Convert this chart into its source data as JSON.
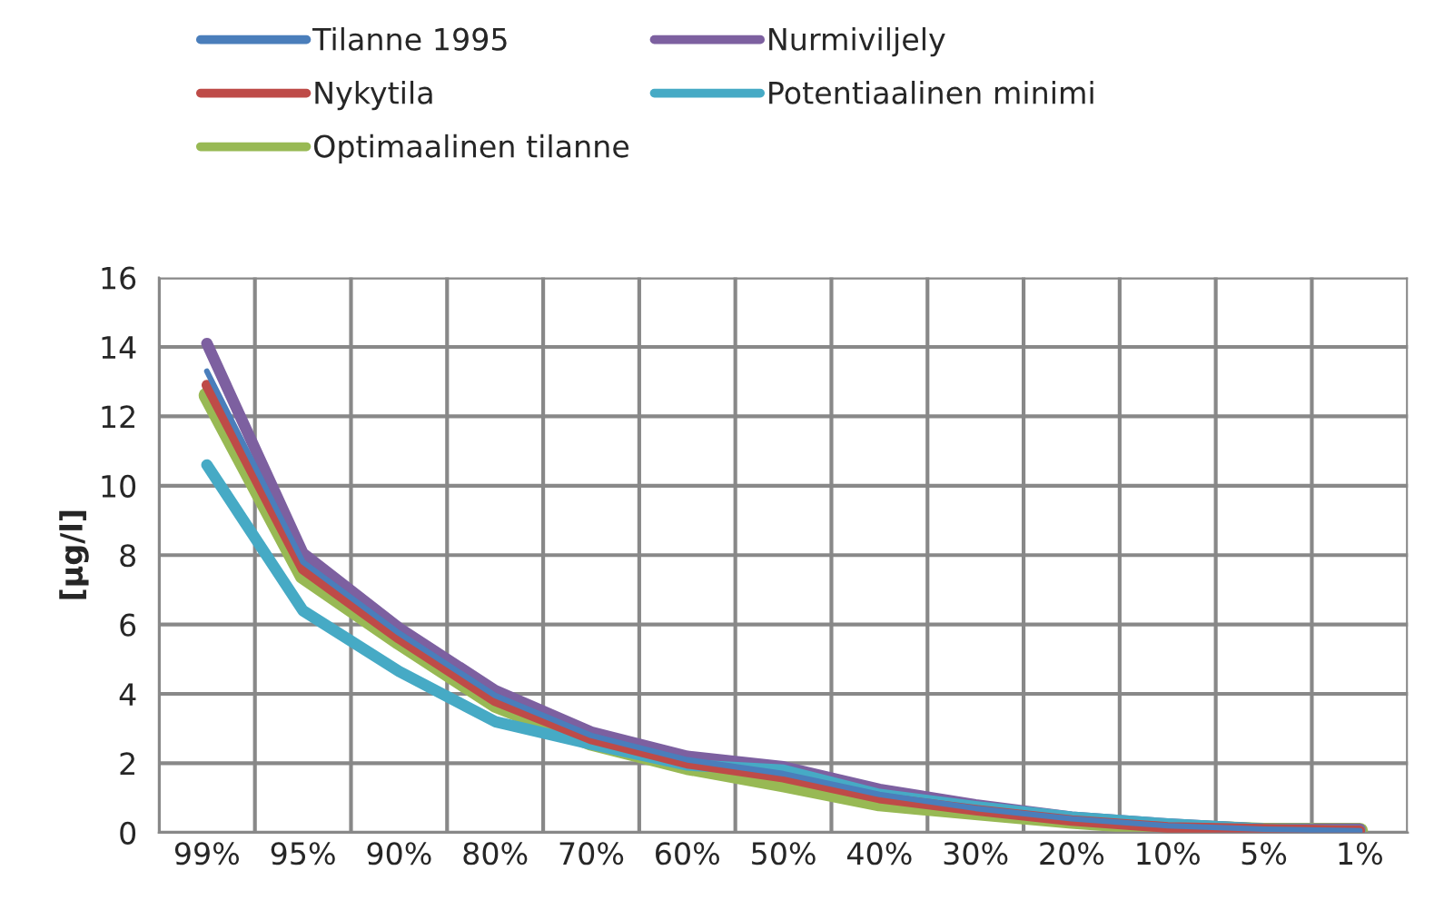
{
  "chart_data": {
    "type": "line",
    "ylabel": "[µg/l]",
    "categories": [
      "99%",
      "95%",
      "90%",
      "80%",
      "70%",
      "60%",
      "50%",
      "40%",
      "30%",
      "20%",
      "10%",
      "5%",
      "1%"
    ],
    "series": [
      {
        "name": "Tilanne 1995",
        "color": "#4a7ebb",
        "values": [
          13.3,
          7.8,
          5.75,
          3.95,
          2.8,
          2.1,
          1.7,
          1.1,
          0.7,
          0.4,
          0.2,
          0.1,
          0.05
        ]
      },
      {
        "name": "Nykytila",
        "color": "#be4b48",
        "values": [
          12.9,
          7.6,
          5.6,
          3.8,
          2.7,
          2.0,
          1.6,
          1.0,
          0.65,
          0.35,
          0.15,
          0.1,
          0.05
        ]
      },
      {
        "name": "Optimaalinen tilanne",
        "color": "#98b954",
        "values": [
          12.6,
          7.4,
          5.5,
          3.7,
          2.6,
          1.9,
          1.4,
          0.85,
          0.6,
          0.35,
          0.15,
          0.05,
          0.05
        ]
      },
      {
        "name": "Nurmiviljely",
        "color": "#7d60a0",
        "values": [
          14.1,
          8.05,
          5.9,
          4.1,
          2.9,
          2.2,
          1.9,
          1.25,
          0.8,
          0.45,
          0.25,
          0.1,
          0.1
        ]
      },
      {
        "name": "Potentiaalinen minimi",
        "color": "#46aac5",
        "values": [
          10.6,
          6.4,
          4.65,
          3.2,
          2.55,
          1.95,
          1.8,
          1.1,
          0.75,
          0.45,
          0.25,
          0.1,
          0.05
        ]
      }
    ],
    "ylim": [
      0,
      16
    ],
    "yticks": [
      0,
      2,
      4,
      6,
      8,
      10,
      12,
      14,
      16
    ],
    "grid": true,
    "legend": "top",
    "marker": "none",
    "line_style": "solid"
  }
}
